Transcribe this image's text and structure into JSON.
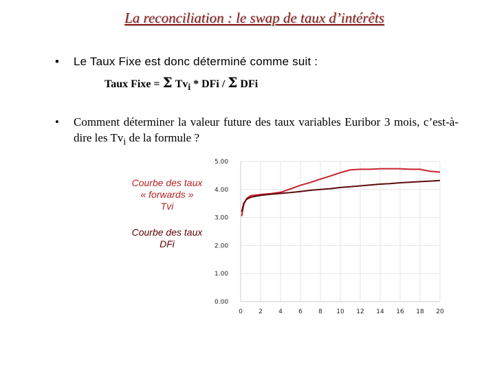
{
  "title": "La reconciliation : le swap de taux d’intérêts",
  "bullet1": {
    "text": "Le Taux Fixe est donc déterminé comme suit :",
    "formula_prefix": "Taux Fixe = ",
    "sigma": "Σ",
    "term1": "Tv",
    "sub": "i",
    "mid": " * DFi / ",
    "term2": "DFi"
  },
  "bullet2": {
    "text_before": "Comment déterminer la valeur future des taux variables Euribor 3 mois, c’est-à-dire les Tv",
    "sub": "i",
    "text_after": " de la formule ?"
  },
  "legend": {
    "forwards": [
      "Courbe des taux",
      "« forwards »",
      "Tvi"
    ],
    "dfi": [
      "Courbe des taux",
      "DFi"
    ]
  },
  "colors": {
    "title": "#8b1a1a",
    "forwards": "#c8202a",
    "dfi": "#5c0a0a",
    "grid": "#e6e6e6"
  },
  "chart_data": {
    "type": "line",
    "x_ticks": [
      "0",
      "2",
      "4",
      "6",
      "8",
      "10",
      "12",
      "14",
      "16",
      "18",
      "20"
    ],
    "y_ticks": [
      "0.00",
      "1.00",
      "2.00",
      "3.00",
      "4.00",
      "5.00"
    ],
    "xlim": [
      0,
      20
    ],
    "ylim": [
      0,
      5
    ],
    "grid": true,
    "series": [
      {
        "key": "forwards",
        "x": [
          0.1,
          0.3,
          0.6,
          1,
          1.5,
          2,
          3,
          4,
          5,
          6,
          7,
          8,
          9,
          10,
          11,
          12,
          13,
          14,
          15,
          16,
          17,
          18,
          19,
          20
        ],
        "y": [
          3.05,
          3.45,
          3.68,
          3.78,
          3.8,
          3.82,
          3.85,
          3.9,
          4.02,
          4.15,
          4.25,
          4.37,
          4.48,
          4.6,
          4.7,
          4.72,
          4.72,
          4.74,
          4.74,
          4.74,
          4.72,
          4.72,
          4.65,
          4.62
        ]
      },
      {
        "key": "dfi",
        "x": [
          0.1,
          0.3,
          0.6,
          1,
          1.5,
          2,
          3,
          4,
          5,
          6,
          7,
          8,
          9,
          10,
          11,
          12,
          13,
          14,
          15,
          16,
          17,
          18,
          19,
          20
        ],
        "y": [
          3.2,
          3.5,
          3.65,
          3.72,
          3.76,
          3.79,
          3.83,
          3.86,
          3.89,
          3.93,
          3.97,
          4.0,
          4.03,
          4.07,
          4.1,
          4.13,
          4.16,
          4.19,
          4.21,
          4.24,
          4.26,
          4.28,
          4.3,
          4.32
        ]
      }
    ]
  }
}
